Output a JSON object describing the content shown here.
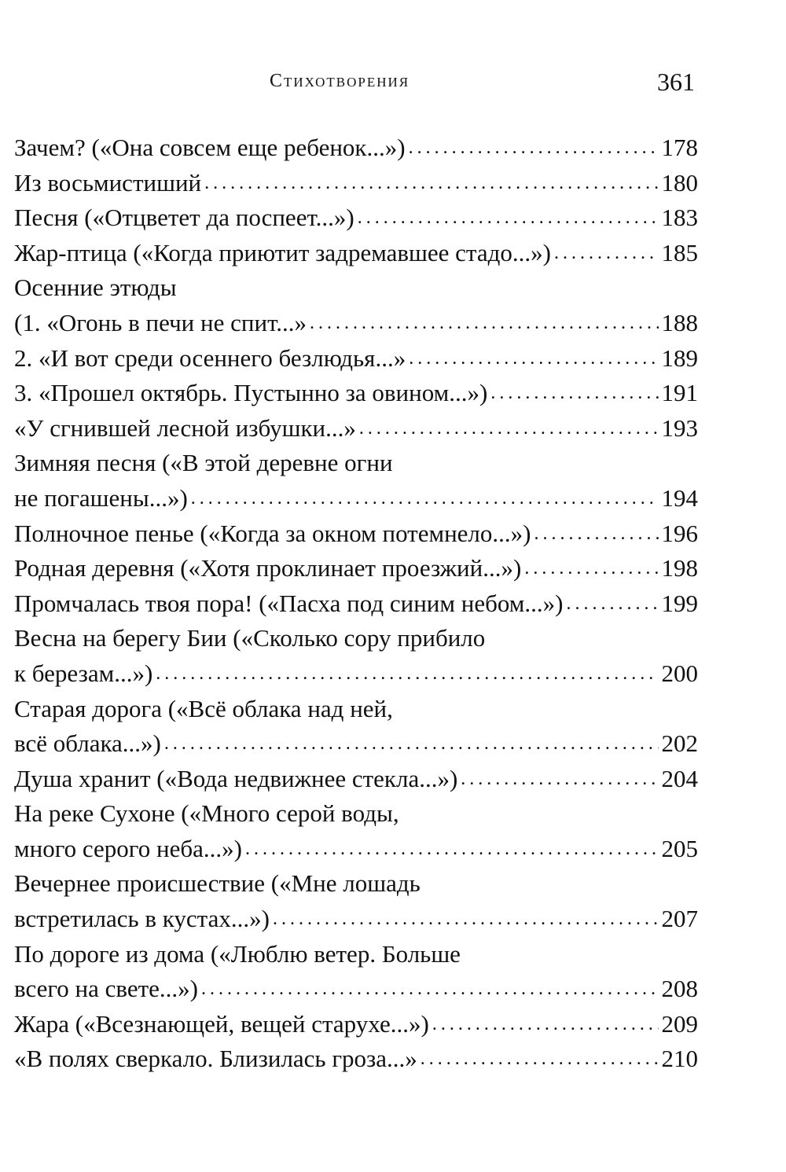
{
  "header": {
    "title": "Стихотворения",
    "page_number": "361"
  },
  "toc": [
    {
      "lines": [
        "Зачем? («Она совсем еще ребенок...»)"
      ],
      "page": "178"
    },
    {
      "lines": [
        "Из восьмистиший"
      ],
      "page": "180"
    },
    {
      "lines": [
        "Песня («Отцветет да поспеет...»)"
      ],
      "page": "183"
    },
    {
      "lines": [
        "Жар-птица («Когда приютит задремавшее стадо...»)"
      ],
      "page": "185"
    },
    {
      "lines": [
        "Осенние этюды"
      ],
      "page": ""
    },
    {
      "lines": [
        "(1. «Огонь в печи не спит...»"
      ],
      "page": "188"
    },
    {
      "lines": [
        "2. «И вот среди осеннего безлюдья...»"
      ],
      "page": "189"
    },
    {
      "lines": [
        "3. «Прошел октябрь. Пустынно за овином...»)"
      ],
      "page": "191"
    },
    {
      "lines": [
        "«У сгнившей лесной избушки...»"
      ],
      "page": "193"
    },
    {
      "lines": [
        "Зимняя песня («В этой деревне огни",
        "не погашены...»)"
      ],
      "page": "194"
    },
    {
      "lines": [
        "Полночное пенье («Когда за окном потемнело...»)"
      ],
      "page": "196"
    },
    {
      "lines": [
        "Родная деревня («Хотя проклинает проезжий...»)"
      ],
      "page": "198"
    },
    {
      "lines": [
        "Промчалась твоя пора! («Пасха под синим небом...»)"
      ],
      "page": "199"
    },
    {
      "lines": [
        "Весна на берегу Бии («Сколько сору прибило",
        "к березам...»)"
      ],
      "page": "200"
    },
    {
      "lines": [
        "Старая дорога («Всё облака над ней,",
        "всё облака...»)"
      ],
      "page": "202"
    },
    {
      "lines": [
        "Душа хранит («Вода недвижнее стекла...»)"
      ],
      "page": "204"
    },
    {
      "lines": [
        "На реке Сухоне («Много серой воды,",
        "много серого неба...»)"
      ],
      "page": "205"
    },
    {
      "lines": [
        "Вечернее происшествие («Мне лошадь",
        "встретилась в кустах...»)"
      ],
      "page": "207"
    },
    {
      "lines": [
        "По дороге из дома («Люблю ветер. Больше",
        "всего на свете...»)"
      ],
      "page": "208"
    },
    {
      "lines": [
        "Жара («Всезнающей, вещей старухе...»)"
      ],
      "page": "209"
    },
    {
      "lines": [
        "«В полях сверкало. Близилась гроза...»"
      ],
      "page": "210"
    }
  ]
}
